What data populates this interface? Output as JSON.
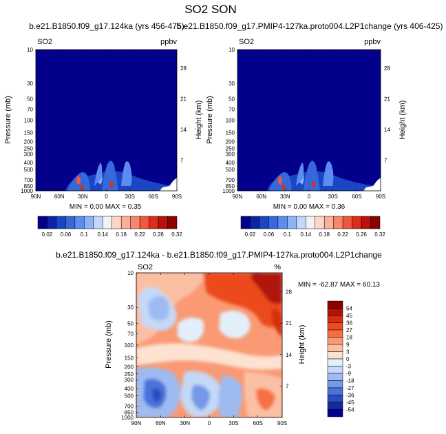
{
  "figure": {
    "title": "SO2 SON"
  },
  "panels": [
    {
      "id": "left",
      "title": "b.e21.B1850.f09_g17.124ka (yrs 456-475)",
      "var_label": "SO2",
      "units": "ppbv",
      "stats": "MIN =  0.00  MAX =  0.35"
    },
    {
      "id": "right",
      "title": "b.e21.B1850.f09_g17.PMIP4-127ka.proto004.L2P1change (yrs 406-425)",
      "var_label": "SO2",
      "units": "ppbv",
      "stats": "MIN =  0.00  MAX =  0.36"
    },
    {
      "id": "diff",
      "title": "b.e21.B1850.f09_g17.124ka - b.e21.B1850.f09_g17.PMIP4-127ka.proto004.L2P1change",
      "var_label": "SO2",
      "units": "%",
      "stats": "MIN = -62.87  MAX = 60.13"
    }
  ],
  "axes": {
    "ylabel": "Pressure (mb)",
    "ylabel_right": "Height (km)",
    "xticks": [
      "90N",
      "60N",
      "30N",
      "0",
      "30S",
      "60S",
      "90S"
    ],
    "yticks": [
      "10",
      "30",
      "50",
      "70",
      "100",
      "150",
      "200",
      "250",
      "300",
      "400",
      "500",
      "700",
      "850",
      "1000"
    ],
    "yticks_right": [
      "28",
      "21",
      "14",
      "7"
    ]
  },
  "colorbar_top": {
    "labels": [
      "0.02",
      "0.06",
      "0.1",
      "0.14",
      "0.18",
      "0.22",
      "0.26",
      "0.32"
    ],
    "colors": [
      "#03008c",
      "#0c23a6",
      "#1a45c4",
      "#3569db",
      "#5b8df0",
      "#8db2f7",
      "#bfd8fb",
      "#f2f2f2",
      "#fdd6c6",
      "#fcb09a",
      "#f8866b",
      "#f0573c",
      "#dc2c1a",
      "#b9110c",
      "#8c0000"
    ]
  },
  "colorbar_diff": {
    "labels": [
      "54",
      "45",
      "36",
      "27",
      "18",
      "9",
      "3",
      "0",
      "-3",
      "-9",
      "-18",
      "-27",
      "-36",
      "-45",
      "-54"
    ],
    "colors": [
      "#8c0000",
      "#b01408",
      "#d42d10",
      "#ec4a1f",
      "#f66f44",
      "#f99a74",
      "#fbc0a4",
      "#fde2d2",
      "#e3eefb",
      "#c4d8f7",
      "#9dbbf1",
      "#7399e8",
      "#4b72d9",
      "#2a4cc2",
      "#1428a4",
      "#03008c"
    ]
  },
  "chart_data": [
    {
      "type": "heatmap",
      "title": "b.e21.B1850.f09_g17.124ka (yrs 456-475)",
      "variable": "SO2",
      "units": "ppbv",
      "x": [
        "90N",
        "60N",
        "30N",
        "0",
        "30S",
        "60S",
        "90S"
      ],
      "y_pressure_mb": [
        10,
        30,
        50,
        70,
        100,
        150,
        200,
        250,
        300,
        400,
        500,
        700,
        850,
        1000
      ],
      "min": 0.0,
      "max": 0.35,
      "features": [
        {
          "lat": 40,
          "p": 780,
          "value": 0.3
        },
        {
          "lat": 28,
          "p": 850,
          "value": 0.32
        },
        {
          "lat": -5,
          "p": 800,
          "value": 0.32
        },
        {
          "lat": 22,
          "p": 420,
          "value": 0.12
        },
        {
          "lat": -20,
          "p": 450,
          "value": 0.12
        }
      ]
    },
    {
      "type": "heatmap",
      "title": "b.e21.B1850.f09_g17.PMIP4-127ka.proto004.L2P1change (yrs 406-425)",
      "variable": "SO2",
      "units": "ppbv",
      "x": [
        "90N",
        "60N",
        "30N",
        "0",
        "30S",
        "60S",
        "90S"
      ],
      "y_pressure_mb": [
        10,
        30,
        50,
        70,
        100,
        150,
        200,
        250,
        300,
        400,
        500,
        700,
        850,
        1000
      ],
      "min": 0.0,
      "max": 0.36,
      "features": [
        {
          "lat": 40,
          "p": 780,
          "value": 0.31
        },
        {
          "lat": 28,
          "p": 850,
          "value": 0.33
        },
        {
          "lat": -5,
          "p": 800,
          "value": 0.33
        },
        {
          "lat": 22,
          "p": 420,
          "value": 0.12
        },
        {
          "lat": -20,
          "p": 450,
          "value": 0.12
        }
      ]
    },
    {
      "type": "heatmap",
      "title": "b.e21.B1850.f09_g17.124ka - b.e21.B1850.f09_g17.PMIP4-127ka.proto004.L2P1change",
      "variable": "SO2",
      "units": "%",
      "x": [
        "90N",
        "60N",
        "30N",
        "0",
        "30S",
        "60S",
        "90S"
      ],
      "y_pressure_mb": [
        10,
        30,
        50,
        70,
        100,
        150,
        200,
        250,
        300,
        400,
        500,
        700,
        850,
        1000
      ],
      "min": -62.87,
      "max": 60.13,
      "features": [
        {
          "lat": -75,
          "p": 15,
          "value": 54
        },
        {
          "lat": -20,
          "p": 20,
          "value": 36
        },
        {
          "lat": 60,
          "p": 60,
          "value": -18
        },
        {
          "lat": 45,
          "p": 500,
          "value": -36
        },
        {
          "lat": 10,
          "p": 600,
          "value": -27
        }
      ]
    }
  ]
}
